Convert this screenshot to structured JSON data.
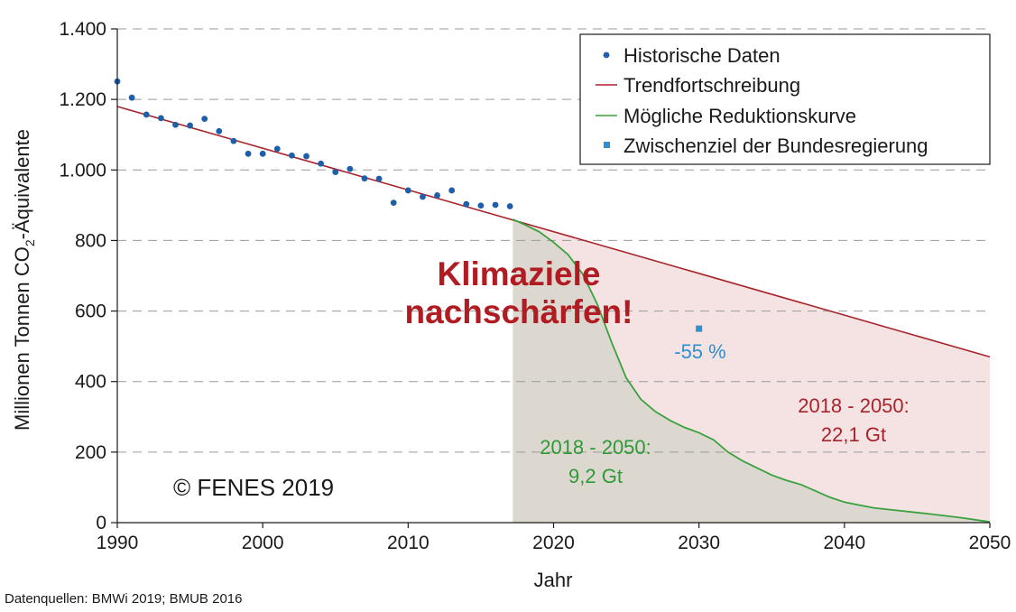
{
  "chart_data": {
    "type": "line",
    "xlabel": "Jahr",
    "ylabel_main": "Millionen Tonnen CO",
    "ylabel_sub": "2",
    "ylabel_rest": "-Äquivalente",
    "xlim": [
      1990,
      2050
    ],
    "ylim": [
      0,
      1400
    ],
    "x_ticks": [
      1990,
      2000,
      2010,
      2020,
      2030,
      2040,
      2050
    ],
    "x_tick_labels": [
      "1990",
      "2000",
      "2010",
      "2020",
      "2030",
      "2040",
      "2050"
    ],
    "y_ticks": [
      0,
      200,
      400,
      600,
      800,
      1000,
      1200,
      1400
    ],
    "y_tick_labels": [
      "0",
      "200",
      "400",
      "600",
      "800",
      "1.000",
      "1.200",
      "1.400"
    ],
    "grid": "horizontal dashed",
    "legend_position": "top-right",
    "series": [
      {
        "name": "Historische Daten",
        "kind": "scatter",
        "color": "#1f5ea8",
        "x": [
          1990,
          1991,
          1992,
          1993,
          1994,
          1995,
          1996,
          1997,
          1998,
          1999,
          2000,
          2001,
          2002,
          2003,
          2004,
          2005,
          2006,
          2007,
          2008,
          2009,
          2010,
          2011,
          2012,
          2013,
          2014,
          2015,
          2016,
          2017
        ],
        "y": [
          1251,
          1205,
          1157,
          1147,
          1128,
          1126,
          1145,
          1110,
          1082,
          1046,
          1046,
          1060,
          1041,
          1039,
          1018,
          994,
          1003,
          976,
          975,
          907,
          942,
          924,
          928,
          942,
          903,
          899,
          901,
          897
        ]
      },
      {
        "name": "Trendfortschreibung",
        "kind": "line",
        "color": "#a8242a",
        "x": [
          1990,
          2050
        ],
        "y": [
          1180,
          470
        ]
      },
      {
        "name": "Mögliche Reduktionskurve",
        "kind": "line",
        "color": "#3aa13f",
        "x": [
          2017.2,
          2018,
          2019,
          2020,
          2021,
          2022,
          2023,
          2024,
          2025,
          2026,
          2027,
          2028,
          2029,
          2030,
          2031,
          2032,
          2033,
          2034,
          2035,
          2036,
          2037,
          2038,
          2039,
          2040,
          2041,
          2042,
          2044,
          2046,
          2048,
          2050
        ],
        "y": [
          860,
          845,
          825,
          795,
          760,
          705,
          620,
          510,
          410,
          350,
          315,
          290,
          270,
          255,
          235,
          200,
          175,
          155,
          135,
          120,
          108,
          90,
          72,
          58,
          50,
          42,
          33,
          24,
          14,
          2
        ]
      },
      {
        "name": "Zwischenziel der Bundesregierung",
        "kind": "marker",
        "color": "#2f8fd0",
        "x": [
          2030
        ],
        "y": [
          550
        ]
      }
    ],
    "areas": [
      {
        "kind": "green-area",
        "color": "#dcd8d0"
      },
      {
        "kind": "red-area",
        "color": "#f5e3e4"
      }
    ],
    "annotations": {
      "headline_line1": "Klimaziele",
      "headline_line2": "nachschärfen!",
      "target_pct": "-55 %",
      "green_line1": "2018 - 2050:",
      "green_line2": "9,2 Gt",
      "red_line1": "2018 - 2050:",
      "red_line2": "22,1 Gt",
      "copyright": "© FENES 2019",
      "source": "Datenquellen: BMWi 2019; BMUB 2016"
    }
  }
}
